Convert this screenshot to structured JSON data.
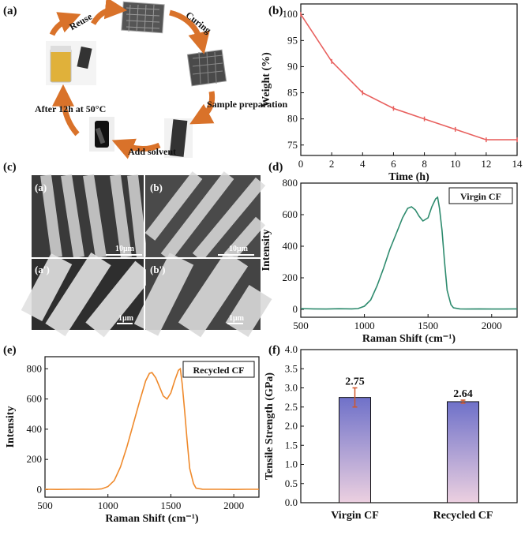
{
  "colors": {
    "weight_line": "#e8605e",
    "raman": "#2e8b6e",
    "recycled": "#ef8a2c",
    "bar_top": "#6f71c9",
    "bar_bottom": "#e9c9dc",
    "errorbar": "#d0562a",
    "arrow": "#d9722a"
  },
  "panels": {
    "a": {
      "label": "(a)",
      "steps": [
        "Reuse",
        "Curing",
        "Sample preparation",
        "Add solvent",
        "After 12h at 50°C"
      ]
    },
    "c": {
      "label": "(c)",
      "tiles": [
        "(a)",
        "(b)",
        "(a')",
        "(b')"
      ],
      "scalebars": [
        "10μm",
        "10μm",
        "1μm",
        "1μm"
      ]
    }
  },
  "chart_data": [
    {
      "id": "b",
      "panel_label": "(b)",
      "type": "line",
      "x": [
        0,
        2,
        4,
        6,
        8,
        10,
        12,
        14
      ],
      "y": [
        100,
        91,
        85,
        82,
        80,
        78,
        76,
        76
      ],
      "xlabel": "Time (h)",
      "ylabel": "Weight (%)",
      "xlim": [
        0,
        14
      ],
      "ylim": [
        73,
        102
      ],
      "xticks": [
        0,
        2,
        4,
        6,
        8,
        10,
        12,
        14
      ],
      "yticks": [
        75,
        80,
        85,
        90,
        95,
        100
      ]
    },
    {
      "id": "d",
      "panel_label": "(d)",
      "type": "line",
      "legend": "Virgin CF",
      "x": [
        500,
        600,
        700,
        800,
        900,
        950,
        1000,
        1050,
        1100,
        1150,
        1200,
        1250,
        1300,
        1340,
        1370,
        1400,
        1430,
        1460,
        1500,
        1530,
        1560,
        1575,
        1590,
        1610,
        1630,
        1650,
        1680,
        1700,
        1750,
        1800,
        1900,
        2000,
        2100,
        2200
      ],
      "y": [
        5,
        3,
        2,
        4,
        3,
        5,
        20,
        60,
        150,
        260,
        380,
        480,
        580,
        640,
        650,
        630,
        590,
        560,
        580,
        650,
        700,
        710,
        640,
        500,
        300,
        120,
        30,
        10,
        3,
        2,
        3,
        2,
        2,
        3
      ],
      "xlabel": "Raman Shift (cm⁻¹)",
      "ylabel": "Intensity",
      "xlim": [
        500,
        2200
      ],
      "ylim": [
        -50,
        800
      ],
      "xticks": [
        500,
        1000,
        1500,
        2000
      ],
      "yticks": [
        0,
        200,
        400,
        600,
        800
      ]
    },
    {
      "id": "e",
      "panel_label": "(e)",
      "type": "line",
      "legend": "Recycled CF",
      "x": [
        500,
        600,
        700,
        800,
        900,
        950,
        1000,
        1050,
        1100,
        1150,
        1200,
        1250,
        1300,
        1330,
        1350,
        1380,
        1410,
        1440,
        1470,
        1500,
        1530,
        1560,
        1575,
        1590,
        1610,
        1630,
        1650,
        1680,
        1700,
        1750,
        1800,
        1900,
        2000,
        2100,
        2200
      ],
      "y": [
        2,
        1,
        2,
        3,
        2,
        5,
        20,
        60,
        150,
        280,
        430,
        580,
        720,
        770,
        775,
        740,
        680,
        620,
        600,
        640,
        720,
        790,
        800,
        700,
        520,
        320,
        140,
        40,
        10,
        3,
        2,
        2,
        1,
        2,
        2
      ],
      "xlabel": "Raman Shift (cm⁻¹)",
      "ylabel": "Intensity",
      "xlim": [
        500,
        2200
      ],
      "ylim": [
        -50,
        880
      ],
      "xticks": [
        500,
        1000,
        1500,
        2000
      ],
      "yticks": [
        0,
        200,
        400,
        600,
        800
      ]
    },
    {
      "id": "f",
      "panel_label": "(f)",
      "type": "bar",
      "categories": [
        "Virgin CF",
        "Recycled CF"
      ],
      "values": [
        2.75,
        2.64
      ],
      "errors": [
        0.25,
        0.04
      ],
      "labels": [
        "2.75",
        "2.64"
      ],
      "ylabel": "Tensile Strength (GPa)",
      "ylim": [
        0,
        4
      ],
      "yticks": [
        "0.0",
        "0.5",
        "1.0",
        "1.5",
        "2.0",
        "2.5",
        "3.0",
        "3.5",
        "4.0"
      ]
    }
  ]
}
